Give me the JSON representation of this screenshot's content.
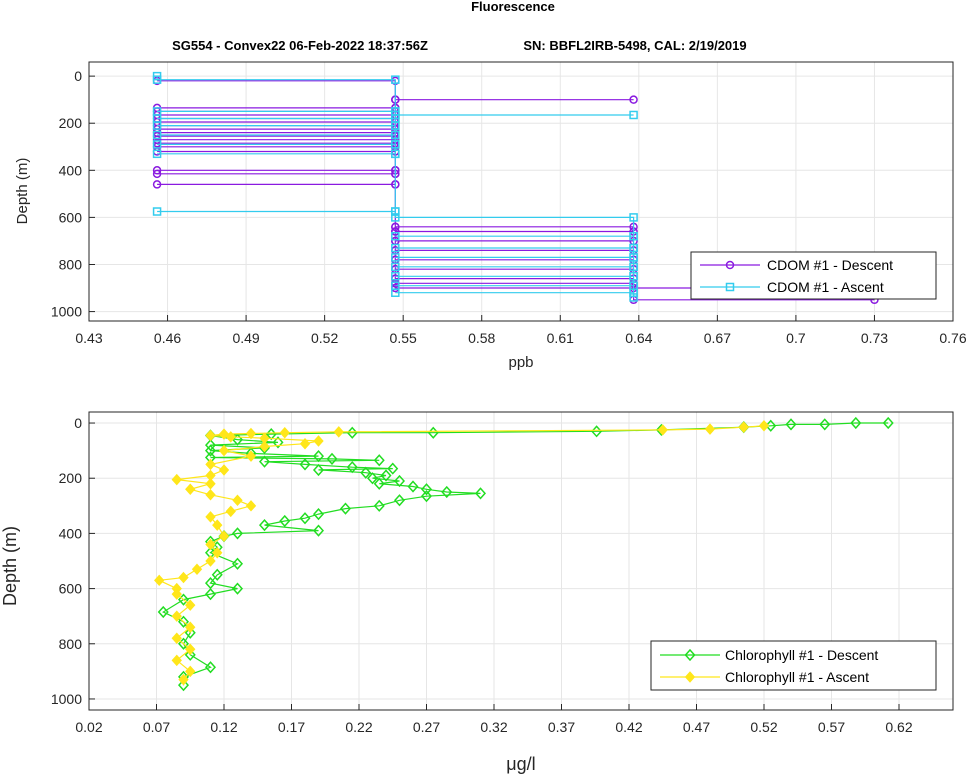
{
  "figure": {
    "title": "Fluorescence",
    "subtitle_left": "SG554 - Convex22 06-Feb-2022 18:37:56Z",
    "subtitle_right": "SN: BBFL2IRB-5498, CAL: 2/19/2019"
  },
  "chart_data": [
    {
      "type": "line",
      "xlabel": "ppb",
      "ylabel": "Depth (m)",
      "xlim": [
        0.43,
        0.76
      ],
      "ylim": [
        1040,
        -60
      ],
      "x_ticks": [
        "0.43",
        "0.46",
        "0.49",
        "0.52",
        "0.55",
        "0.58",
        "0.61",
        "0.64",
        "0.67",
        "0.7",
        "0.73",
        "0.76"
      ],
      "y_ticks": [
        "0",
        "200",
        "400",
        "600",
        "800",
        "1000"
      ],
      "grid": true,
      "legend_location": "lower-right",
      "series": [
        {
          "name": "CDOM #1 - Descent",
          "color": "#8a1ae0",
          "marker": "circle",
          "points": [
            [
              0.456,
              20
            ],
            [
              0.547,
              20
            ],
            [
              0.547,
              100
            ],
            [
              0.638,
              100
            ],
            [
              0.547,
              100
            ],
            [
              0.547,
              135
            ],
            [
              0.456,
              135
            ],
            [
              0.547,
              135
            ],
            [
              0.547,
              150
            ],
            [
              0.456,
              150
            ],
            [
              0.547,
              150
            ],
            [
              0.547,
              165
            ],
            [
              0.456,
              165
            ],
            [
              0.547,
              165
            ],
            [
              0.547,
              180
            ],
            [
              0.456,
              180
            ],
            [
              0.547,
              180
            ],
            [
              0.547,
              195
            ],
            [
              0.456,
              195
            ],
            [
              0.547,
              195
            ],
            [
              0.547,
              210
            ],
            [
              0.456,
              210
            ],
            [
              0.547,
              210
            ],
            [
              0.547,
              225
            ],
            [
              0.456,
              225
            ],
            [
              0.547,
              225
            ],
            [
              0.547,
              240
            ],
            [
              0.456,
              240
            ],
            [
              0.547,
              240
            ],
            [
              0.547,
              255
            ],
            [
              0.456,
              255
            ],
            [
              0.547,
              255
            ],
            [
              0.547,
              270
            ],
            [
              0.456,
              270
            ],
            [
              0.547,
              270
            ],
            [
              0.547,
              285
            ],
            [
              0.456,
              285
            ],
            [
              0.547,
              285
            ],
            [
              0.547,
              300
            ],
            [
              0.456,
              300
            ],
            [
              0.547,
              300
            ],
            [
              0.547,
              320
            ],
            [
              0.456,
              320
            ],
            [
              0.547,
              320
            ],
            [
              0.547,
              400
            ],
            [
              0.456,
              400
            ],
            [
              0.547,
              400
            ],
            [
              0.547,
              415
            ],
            [
              0.456,
              415
            ],
            [
              0.547,
              415
            ],
            [
              0.547,
              460
            ],
            [
              0.456,
              460
            ],
            [
              0.547,
              460
            ],
            [
              0.547,
              640
            ],
            [
              0.638,
              640
            ],
            [
              0.547,
              640
            ],
            [
              0.547,
              660
            ],
            [
              0.638,
              660
            ],
            [
              0.547,
              660
            ],
            [
              0.547,
              700
            ],
            [
              0.638,
              700
            ],
            [
              0.547,
              700
            ],
            [
              0.547,
              740
            ],
            [
              0.638,
              740
            ],
            [
              0.547,
              740
            ],
            [
              0.547,
              780
            ],
            [
              0.638,
              780
            ],
            [
              0.547,
              780
            ],
            [
              0.547,
              820
            ],
            [
              0.638,
              820
            ],
            [
              0.547,
              820
            ],
            [
              0.547,
              860
            ],
            [
              0.638,
              860
            ],
            [
              0.547,
              860
            ],
            [
              0.547,
              880
            ],
            [
              0.638,
              880
            ],
            [
              0.547,
              880
            ],
            [
              0.547,
              900
            ],
            [
              0.73,
              900
            ],
            [
              0.547,
              900
            ],
            [
              0.638,
              900
            ],
            [
              0.638,
              950
            ],
            [
              0.73,
              950
            ]
          ]
        },
        {
          "name": "CDOM #1 - Ascent",
          "color": "#33ccee",
          "marker": "square",
          "points": [
            [
              0.638,
              940
            ],
            [
              0.638,
              920
            ],
            [
              0.547,
              920
            ],
            [
              0.638,
              920
            ],
            [
              0.638,
              890
            ],
            [
              0.547,
              890
            ],
            [
              0.638,
              890
            ],
            [
              0.638,
              850
            ],
            [
              0.547,
              850
            ],
            [
              0.638,
              850
            ],
            [
              0.638,
              810
            ],
            [
              0.547,
              810
            ],
            [
              0.638,
              810
            ],
            [
              0.638,
              770
            ],
            [
              0.547,
              770
            ],
            [
              0.638,
              770
            ],
            [
              0.638,
              730
            ],
            [
              0.547,
              730
            ],
            [
              0.638,
              730
            ],
            [
              0.638,
              680
            ],
            [
              0.547,
              680
            ],
            [
              0.638,
              680
            ],
            [
              0.638,
              600
            ],
            [
              0.547,
              600
            ],
            [
              0.547,
              575
            ],
            [
              0.456,
              575
            ],
            [
              0.547,
              575
            ],
            [
              0.547,
              330
            ],
            [
              0.456,
              330
            ],
            [
              0.547,
              330
            ],
            [
              0.547,
              290
            ],
            [
              0.456,
              290
            ],
            [
              0.547,
              290
            ],
            [
              0.547,
              250
            ],
            [
              0.456,
              250
            ],
            [
              0.547,
              250
            ],
            [
              0.547,
              210
            ],
            [
              0.456,
              210
            ],
            [
              0.547,
              210
            ],
            [
              0.547,
              180
            ],
            [
              0.456,
              180
            ],
            [
              0.547,
              180
            ],
            [
              0.547,
              165
            ],
            [
              0.638,
              165
            ],
            [
              0.547,
              165
            ],
            [
              0.547,
              150
            ],
            [
              0.456,
              150
            ],
            [
              0.547,
              150
            ],
            [
              0.547,
              15
            ],
            [
              0.456,
              15
            ],
            [
              0.456,
              0
            ]
          ]
        }
      ]
    },
    {
      "type": "line",
      "xlabel": "μg/l",
      "ylabel": "Depth (m)",
      "xlim": [
        0.02,
        0.66
      ],
      "ylim": [
        1040,
        -40
      ],
      "x_ticks": [
        "0.02",
        "0.07",
        "0.12",
        "0.17",
        "0.22",
        "0.27",
        "0.32",
        "0.37",
        "0.42",
        "0.47",
        "0.52",
        "0.57",
        "0.62"
      ],
      "y_ticks": [
        "0",
        "200",
        "400",
        "600",
        "800",
        "1000"
      ],
      "grid": true,
      "legend_location": "lower-right",
      "series": [
        {
          "name": "Chlorophyll #1 - Descent",
          "color": "#22dd22",
          "marker": "diamond",
          "points": [
            [
              0.612,
              0
            ],
            [
              0.588,
              0
            ],
            [
              0.565,
              5
            ],
            [
              0.54,
              5
            ],
            [
              0.525,
              10
            ],
            [
              0.505,
              15
            ],
            [
              0.444,
              25
            ],
            [
              0.396,
              30
            ],
            [
              0.275,
              35
            ],
            [
              0.215,
              35
            ],
            [
              0.155,
              40
            ],
            [
              0.11,
              45
            ],
            [
              0.13,
              60
            ],
            [
              0.16,
              70
            ],
            [
              0.11,
              80
            ],
            [
              0.15,
              90
            ],
            [
              0.11,
              100
            ],
            [
              0.14,
              110
            ],
            [
              0.19,
              120
            ],
            [
              0.11,
              125
            ],
            [
              0.2,
              130
            ],
            [
              0.235,
              135
            ],
            [
              0.15,
              140
            ],
            [
              0.18,
              150
            ],
            [
              0.215,
              160
            ],
            [
              0.245,
              165
            ],
            [
              0.19,
              170
            ],
            [
              0.225,
              180
            ],
            [
              0.24,
              190
            ],
            [
              0.23,
              200
            ],
            [
              0.25,
              210
            ],
            [
              0.235,
              220
            ],
            [
              0.26,
              230
            ],
            [
              0.27,
              240
            ],
            [
              0.285,
              250
            ],
            [
              0.31,
              255
            ],
            [
              0.27,
              265
            ],
            [
              0.25,
              280
            ],
            [
              0.235,
              300
            ],
            [
              0.21,
              310
            ],
            [
              0.19,
              330
            ],
            [
              0.18,
              345
            ],
            [
              0.165,
              355
            ],
            [
              0.15,
              370
            ],
            [
              0.19,
              390
            ],
            [
              0.13,
              400
            ],
            [
              0.12,
              410
            ],
            [
              0.11,
              430
            ],
            [
              0.115,
              450
            ],
            [
              0.11,
              470
            ],
            [
              0.13,
              510
            ],
            [
              0.115,
              550
            ],
            [
              0.11,
              580
            ],
            [
              0.13,
              600
            ],
            [
              0.11,
              620
            ],
            [
              0.09,
              640
            ],
            [
              0.075,
              685
            ],
            [
              0.09,
              720
            ],
            [
              0.095,
              760
            ],
            [
              0.09,
              800
            ],
            [
              0.095,
              840
            ],
            [
              0.11,
              885
            ],
            [
              0.09,
              920
            ],
            [
              0.09,
              950
            ]
          ]
        },
        {
          "name": "Chlorophyll #1 - Ascent",
          "color": "#ffe61a",
          "marker": "diamond",
          "points": [
            [
              0.09,
              930
            ],
            [
              0.095,
              900
            ],
            [
              0.085,
              860
            ],
            [
              0.095,
              820
            ],
            [
              0.085,
              780
            ],
            [
              0.095,
              740
            ],
            [
              0.085,
              700
            ],
            [
              0.095,
              660
            ],
            [
              0.085,
              620
            ],
            [
              0.085,
              600
            ],
            [
              0.072,
              570
            ],
            [
              0.09,
              560
            ],
            [
              0.1,
              530
            ],
            [
              0.11,
              500
            ],
            [
              0.115,
              470
            ],
            [
              0.11,
              440
            ],
            [
              0.12,
              410
            ],
            [
              0.115,
              370
            ],
            [
              0.11,
              340
            ],
            [
              0.125,
              320
            ],
            [
              0.14,
              300
            ],
            [
              0.13,
              280
            ],
            [
              0.11,
              260
            ],
            [
              0.095,
              240
            ],
            [
              0.11,
              220
            ],
            [
              0.085,
              205
            ],
            [
              0.11,
              190
            ],
            [
              0.12,
              170
            ],
            [
              0.11,
              150
            ],
            [
              0.14,
              120
            ],
            [
              0.12,
              100
            ],
            [
              0.15,
              85
            ],
            [
              0.18,
              75
            ],
            [
              0.19,
              65
            ],
            [
              0.15,
              55
            ],
            [
              0.125,
              50
            ],
            [
              0.11,
              45
            ],
            [
              0.12,
              40
            ],
            [
              0.14,
              38
            ],
            [
              0.165,
              35
            ],
            [
              0.205,
              32
            ],
            [
              0.445,
              25
            ],
            [
              0.48,
              22
            ],
            [
              0.505,
              15
            ],
            [
              0.52,
              10
            ]
          ]
        }
      ]
    }
  ]
}
